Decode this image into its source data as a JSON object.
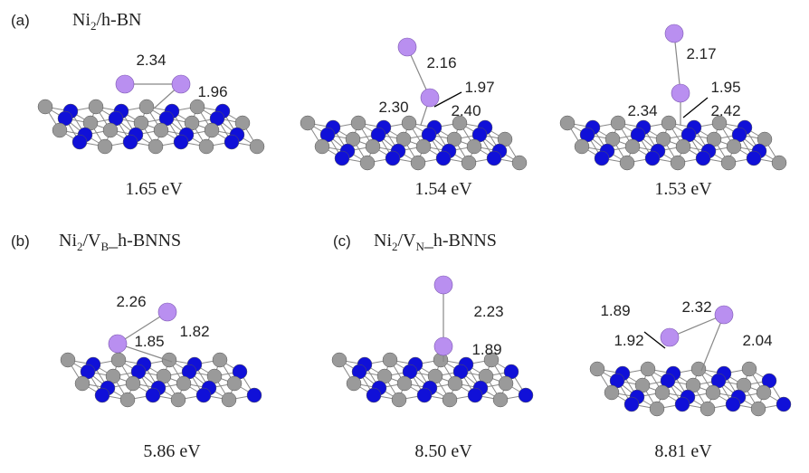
{
  "panels": [
    {
      "label": "(a)",
      "title": [
        "Ni",
        "2",
        "/h-BN"
      ],
      "structures": [
        {
          "bonds": [
            "2.34",
            "1.96"
          ],
          "energy": "1.65 eV"
        },
        {
          "bonds": [
            "2.16",
            "1.97",
            "2.30",
            "2.40"
          ],
          "energy": "1.54 eV"
        },
        {
          "bonds": [
            "2.17",
            "1.95",
            "2.34",
            "2.42"
          ],
          "energy": "1.53 eV"
        }
      ]
    },
    {
      "label": "(b)",
      "title": [
        "Ni",
        "2",
        "/V",
        "B",
        "_h-BNNS"
      ],
      "structures": [
        {
          "bonds": [
            "2.26",
            "1.85",
            "1.82"
          ],
          "energy": "5.86 eV"
        }
      ]
    },
    {
      "label": "(c)",
      "title": [
        "Ni",
        "2",
        "/V",
        "N",
        "_h-BNNS"
      ],
      "structures": [
        {
          "bonds": [
            "2.23",
            "1.89"
          ],
          "energy": "8.50 eV"
        },
        {
          "bonds": [
            "1.89",
            "2.32",
            "1.92",
            "2.04"
          ],
          "energy": "8.81 eV"
        }
      ]
    }
  ]
}
